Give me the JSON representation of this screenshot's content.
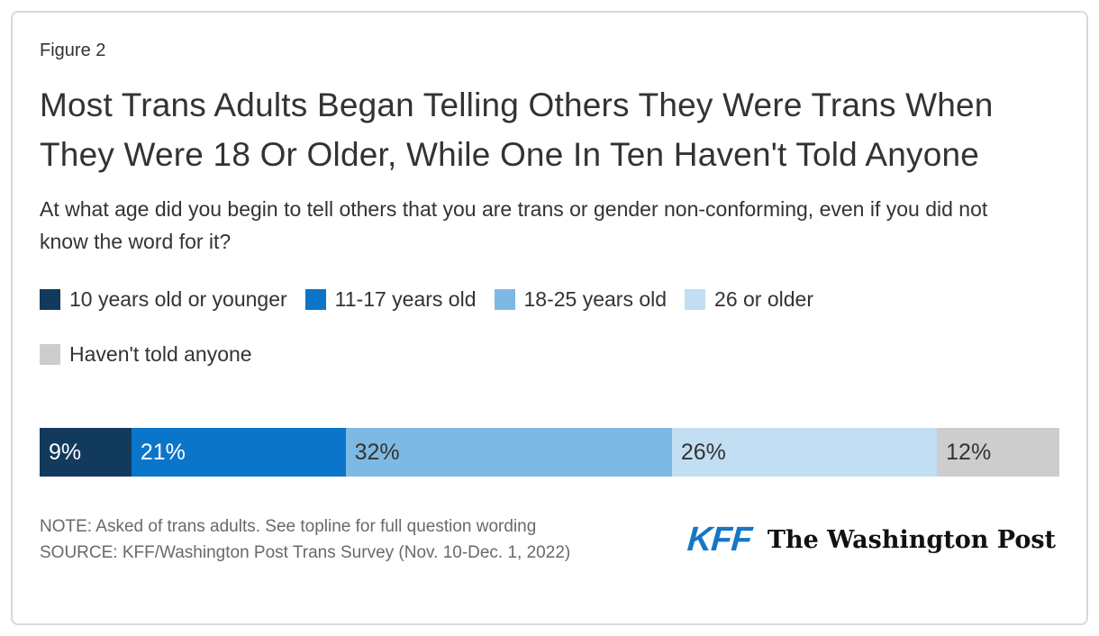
{
  "figure_label": "Figure 2",
  "title": "Most Trans Adults Began Telling Others They Were Trans When They Were 18 Or Older, While One In Ten Haven't Told Anyone",
  "subtitle": "At what age did you begin to tell others that you are trans or gender non-conforming, even if you did not know the word for it?",
  "chart_data": {
    "type": "bar",
    "stacked": true,
    "orientation": "horizontal",
    "categories": [
      "10 years old or younger",
      "11-17 years old",
      "18-25 years old",
      "26 or older",
      "Haven't told anyone"
    ],
    "values": [
      9,
      21,
      32,
      26,
      12
    ],
    "data_labels": [
      "9%",
      "21%",
      "32%",
      "26%",
      "12%"
    ],
    "colors": [
      "#123a5d",
      "#0b75c9",
      "#7eb9e3",
      "#c1def2",
      "#cdcdcd"
    ],
    "label_colors": [
      "#ffffff",
      "#ffffff",
      "#333333",
      "#333333",
      "#333333"
    ],
    "xlim": [
      0,
      100
    ],
    "legend_position": "top",
    "legend_wrap_after": 4,
    "grid": false,
    "axes_shown": false
  },
  "footer": {
    "note": "NOTE: Asked of trans adults. See topline for full question wording",
    "source": "SOURCE: KFF/Washington Post Trans Survey (Nov. 10-Dec. 1, 2022)",
    "kff_logo_text": "KFF",
    "wapo_logo_text": "The Washington Post"
  },
  "colors": {
    "kff_blue": "#1576c8",
    "text_dark": "#333333",
    "text_muted": "#696969",
    "card_border": "#d9d9d9"
  }
}
